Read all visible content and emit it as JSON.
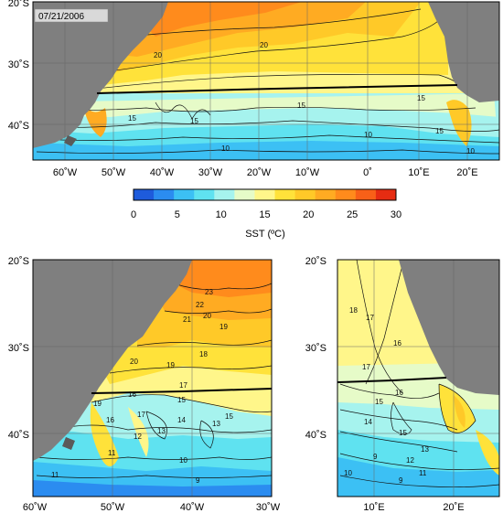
{
  "date_label": "07/21/2006",
  "colorbar": {
    "title": "SST (ºC)",
    "ticks": [
      "0",
      "5",
      "10",
      "15",
      "20",
      "25",
      "30"
    ],
    "colors": [
      "#1e5bdc",
      "#2b8cf0",
      "#3cc0f4",
      "#5fe2f0",
      "#a6f3ee",
      "#e6fbc8",
      "#fff68a",
      "#ffe23a",
      "#ffc928",
      "#ffab22",
      "#ff8b1c",
      "#f86018",
      "#e62c12"
    ]
  },
  "top_map": {
    "lat_labels": [
      "20˚S",
      "30˚S",
      "40˚S"
    ],
    "lon_labels": [
      "60˚W",
      "50˚W",
      "40˚W",
      "30˚W",
      "20˚W",
      "10˚W",
      "0˚",
      "10˚E",
      "20˚E"
    ],
    "contour_labels": [
      "20",
      "20",
      "15",
      "15",
      "15",
      "15",
      "15",
      "10",
      "10",
      "10"
    ]
  },
  "left_map": {
    "lat_labels": [
      "20˚S",
      "30˚S",
      "40˚S"
    ],
    "lon_labels": [
      "60˚W",
      "50˚W",
      "40˚W",
      "30˚W"
    ],
    "contour_labels": [
      "23",
      "22",
      "21",
      "20",
      "19",
      "19",
      "18",
      "20",
      "17",
      "16",
      "19",
      "15",
      "16",
      "17",
      "15",
      "13",
      "14",
      "12",
      "13",
      "11",
      "11",
      "10",
      "9"
    ]
  },
  "right_map": {
    "lat_labels": [
      "20˚S",
      "30˚S",
      "40˚S"
    ],
    "lon_labels": [
      "10˚E",
      "20˚E"
    ],
    "contour_labels": [
      "18",
      "17",
      "16",
      "17",
      "15",
      "16",
      "14",
      "15",
      "13",
      "12",
      "11",
      "10",
      "9",
      "9"
    ]
  },
  "colors": {
    "land": "#7f7f7f",
    "transect": "#000000",
    "grid": "#666666"
  }
}
